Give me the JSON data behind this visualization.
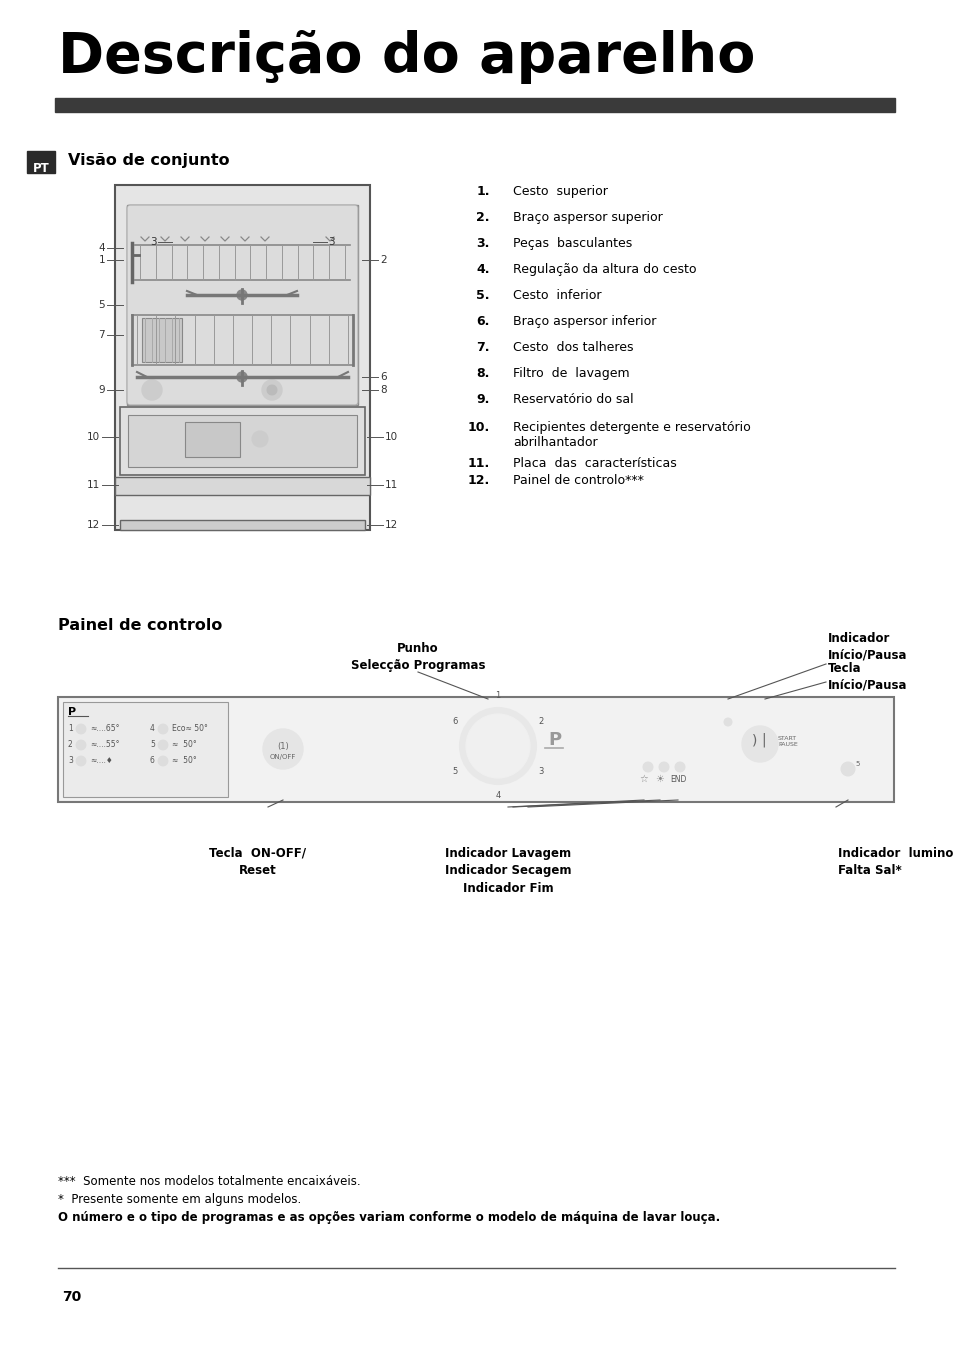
{
  "title": "Descrição do aparelho",
  "section1_title": "Visão de conjunto",
  "section2_title": "Painel de controlo",
  "pt_label": "PT",
  "items": [
    {
      "num": "1.",
      "text": "Cesto  superior"
    },
    {
      "num": "2.",
      "text": "Braço aspersor superior"
    },
    {
      "num": "3.",
      "text": "Peças  basculantes"
    },
    {
      "num": "4.",
      "text": "Regulação da altura do cesto"
    },
    {
      "num": "5.",
      "text": "Cesto  inferior"
    },
    {
      "num": "6.",
      "text": "Braço aspersor inferior"
    },
    {
      "num": "7.",
      "text": "Cesto  dos talheres"
    },
    {
      "num": "8.",
      "text": "Filtro  de  lavagem"
    },
    {
      "num": "9.",
      "text": "Reservatório do sal"
    },
    {
      "num": "10.",
      "text": "Recipientes detergente e reservatório\nabrilhantador"
    },
    {
      "num": "11.",
      "text": "Placa  das  características"
    },
    {
      "num": "12.",
      "text": "Painel de controlo***"
    }
  ],
  "control_panel_labels": {
    "punho": "Punho\nSelecção Programas",
    "indicador_inicio": "Indicador\nInício/Pausa",
    "tecla_inicio": "Tecla\nInício/Pausa",
    "tecla_onoff": "Tecla  ON-OFF/\nReset",
    "indicador_lavagem": "Indicador Lavagem",
    "indicador_secagem": "Indicador Secagem",
    "indicador_fim": "Indicador Fim",
    "indicador_falta_sal": "Indicador  luminoso\nFalta Sal*"
  },
  "footnotes": [
    "***  Somente nos modelos totalmente encaixáveis.",
    "*  Presente somente em alguns modelos.",
    "O número e o tipo de programas e as opções variam conforme o modelo de máquina de lavar louça."
  ],
  "page_number": "70",
  "bg_color": "#ffffff",
  "title_color": "#000000",
  "bar_color": "#3a3a3a",
  "pt_bg_color": "#2a2a2a",
  "pt_text_color": "#ffffff"
}
